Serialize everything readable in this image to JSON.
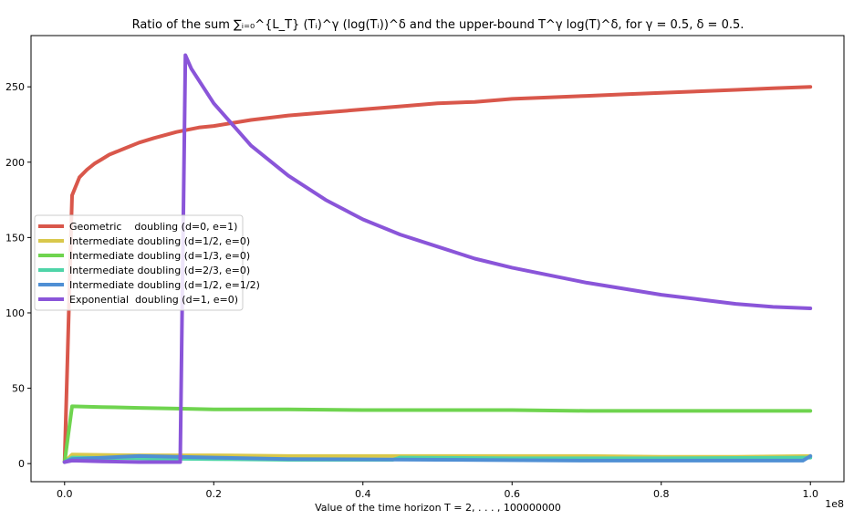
{
  "chart_data": {
    "type": "line",
    "title": "Ratio of the sum ∑ᵢ₌₀^{L_T} (Tᵢ)^γ (log(Tᵢ))^δ and the upper-bound T^γ log(T)^δ, for γ = 0.5, δ = 0.5.",
    "xlabel": "Value of the time horizon T = 2, . . . , 100000000",
    "ylabel": "",
    "x_offset_text": "1e8",
    "xlim": [
      -0.045,
      1.045
    ],
    "ylim": [
      -12,
      284
    ],
    "x_ticks": [
      0.0,
      0.2,
      0.4,
      0.6,
      0.8,
      1.0
    ],
    "x_tick_labels": [
      "0.0",
      "0.2",
      "0.4",
      "0.6",
      "0.8",
      "1.0"
    ],
    "y_ticks": [
      0,
      50,
      100,
      150,
      200,
      250
    ],
    "y_tick_labels": [
      "0",
      "50",
      "100",
      "150",
      "200",
      "250"
    ],
    "grid": false,
    "legend_position": "center-left",
    "series": [
      {
        "name": "Geometric    doubling (d=0, e=1)",
        "color": "#d9574b",
        "x": [
          0.0,
          0.01,
          0.02,
          0.03,
          0.04,
          0.05,
          0.06,
          0.08,
          0.1,
          0.12,
          0.15,
          0.18,
          0.2,
          0.25,
          0.3,
          0.35,
          0.4,
          0.45,
          0.5,
          0.55,
          0.6,
          0.65,
          0.7,
          0.75,
          0.8,
          0.85,
          0.9,
          0.95,
          1.0
        ],
        "y": [
          1,
          178,
          190,
          195,
          199,
          202,
          205,
          209,
          213,
          216,
          220,
          223,
          224,
          228,
          231,
          233,
          235,
          237,
          239,
          240,
          242,
          243,
          244,
          245,
          246,
          247,
          248,
          249,
          250
        ]
      },
      {
        "name": "Intermediate doubling (d=1/2, e=0)",
        "color": "#d9c84b",
        "x": [
          0.0,
          0.01,
          0.1,
          0.2,
          0.3,
          0.4,
          0.5,
          0.6,
          0.7,
          0.8,
          0.9,
          1.0
        ],
        "y": [
          1,
          6,
          5.5,
          5.5,
          5,
          5,
          5,
          5,
          5,
          4.5,
          4.5,
          5
        ]
      },
      {
        "name": "Intermediate doubling (d=1/3, e=0)",
        "color": "#6fd44f",
        "x": [
          0.0,
          0.01,
          0.05,
          0.1,
          0.15,
          0.2,
          0.3,
          0.4,
          0.5,
          0.6,
          0.7,
          0.8,
          0.9,
          1.0
        ],
        "y": [
          1,
          38,
          37.5,
          37,
          36.5,
          36,
          36,
          35.5,
          35.5,
          35.5,
          35,
          35,
          35,
          35
        ]
      },
      {
        "name": "Intermediate doubling (d=2/3, e=0)",
        "color": "#4fd4a8",
        "x": [
          0.0,
          0.01,
          0.1,
          0.2,
          0.3,
          0.44,
          0.45,
          0.6,
          0.8,
          1.0
        ],
        "y": [
          1,
          4,
          3.5,
          3,
          2.5,
          2.5,
          4,
          3.5,
          3.5,
          4
        ]
      },
      {
        "name": "Intermediate doubling (d=1/2, e=1/2)",
        "color": "#4f8fd4",
        "x": [
          0.0,
          0.01,
          0.1,
          0.2,
          0.3,
          0.5,
          0.7,
          0.9,
          0.99,
          1.0
        ],
        "y": [
          1,
          3,
          5,
          4,
          3,
          2.5,
          2,
          2,
          2,
          5
        ]
      },
      {
        "name": "Exponential  doubling (d=1, e=0)",
        "color": "#8a55d9",
        "x": [
          0.0,
          0.01,
          0.05,
          0.1,
          0.15,
          0.155,
          0.162,
          0.17,
          0.2,
          0.25,
          0.3,
          0.35,
          0.4,
          0.45,
          0.5,
          0.55,
          0.6,
          0.65,
          0.7,
          0.75,
          0.8,
          0.85,
          0.9,
          0.95,
          1.0
        ],
        "y": [
          1,
          2,
          1.5,
          1,
          1,
          1,
          271,
          262,
          239,
          211,
          191,
          175,
          162,
          152,
          144,
          136,
          130,
          125,
          120,
          116,
          112,
          109,
          106,
          104,
          103
        ]
      }
    ]
  }
}
